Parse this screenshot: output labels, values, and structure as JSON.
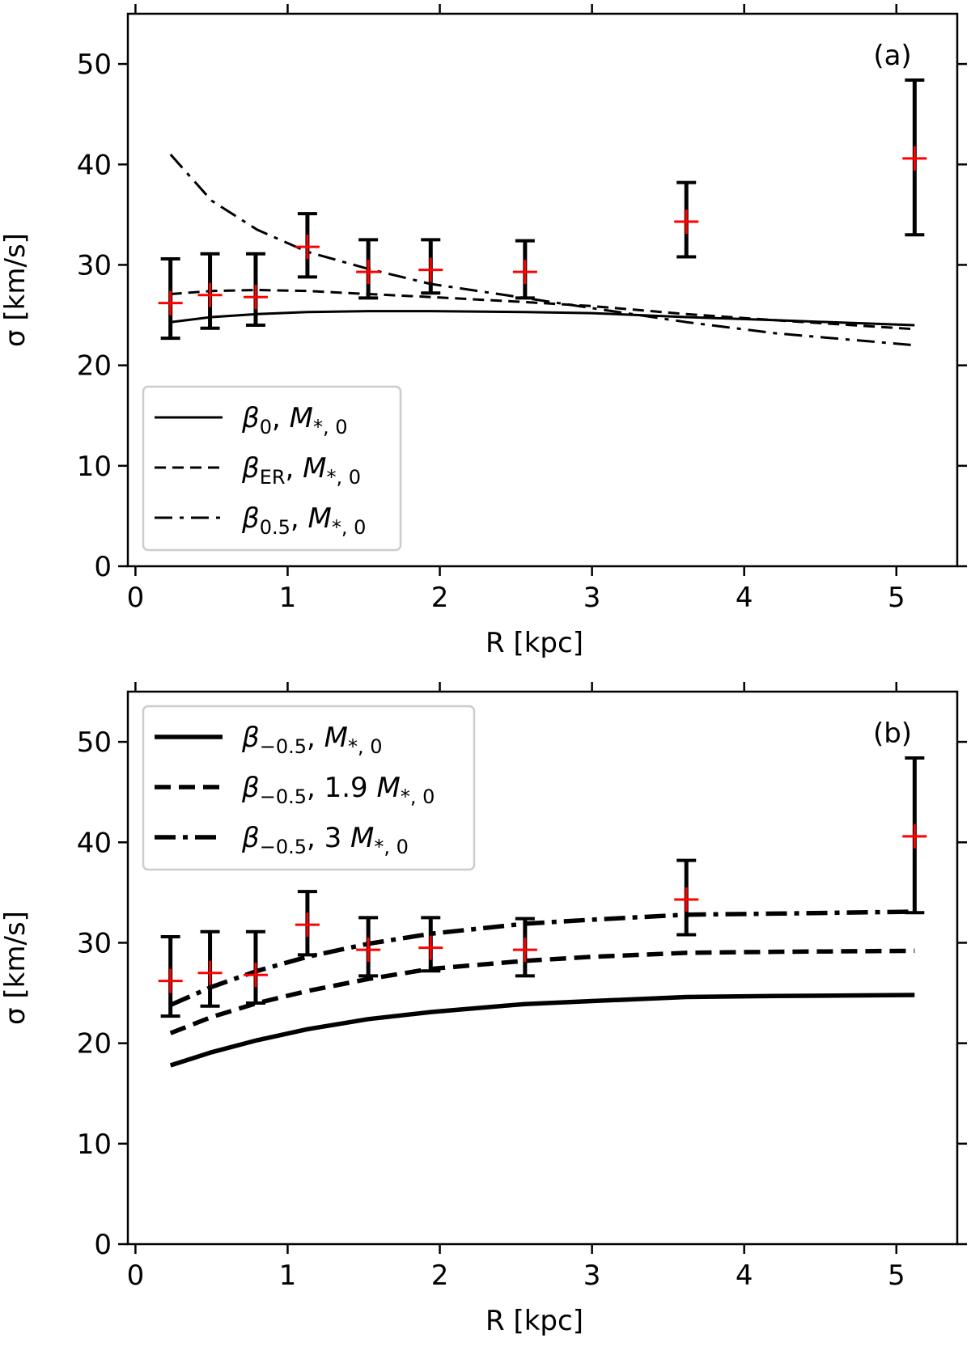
{
  "chart_data": [
    {
      "type": "line",
      "panel_label": "(a)",
      "xlabel": "R [kpc]",
      "ylabel": "σ [km/s]",
      "xlim": [
        -0.05,
        5.4
      ],
      "ylim": [
        0,
        55
      ],
      "xticks": [
        0,
        1,
        2,
        3,
        4,
        5
      ],
      "yticks": [
        0,
        10,
        20,
        30,
        40,
        50
      ],
      "legend_position": "lower-left",
      "observations": {
        "marker": "red-plus",
        "errorbar_color": "#000000",
        "x": [
          0.23,
          0.49,
          0.79,
          1.13,
          1.53,
          1.94,
          2.56,
          3.62,
          5.12
        ],
        "y": [
          26.2,
          27.0,
          26.8,
          31.8,
          29.3,
          29.5,
          29.3,
          34.3,
          40.6
        ],
        "y_err_low": [
          3.5,
          3.3,
          2.8,
          3.0,
          2.6,
          2.3,
          2.6,
          3.5,
          7.6
        ],
        "y_err_high": [
          4.4,
          4.1,
          4.3,
          3.3,
          3.2,
          3.0,
          3.1,
          3.9,
          7.8
        ]
      },
      "series": [
        {
          "name": "β0, M*,0",
          "legend_sym": "β",
          "legend_sub": "0",
          "legend_rest": ", M",
          "legend_sub2": "*, 0",
          "style": "solid",
          "width": "thin",
          "x": [
            0.23,
            0.5,
            0.8,
            1.13,
            1.53,
            1.94,
            2.56,
            3.0,
            3.62,
            4.2,
            5.12
          ],
          "y": [
            24.3,
            24.8,
            25.1,
            25.3,
            25.4,
            25.4,
            25.3,
            25.2,
            24.8,
            24.5,
            24.0
          ]
        },
        {
          "name": "βER, M*,0",
          "legend_sym": "β",
          "legend_sub": "ER",
          "legend_rest": ", M",
          "legend_sub2": "*, 0",
          "style": "dashed",
          "width": "thin",
          "x": [
            0.23,
            0.5,
            0.8,
            1.13,
            1.53,
            1.94,
            2.56,
            3.0,
            3.62,
            4.2,
            5.12
          ],
          "y": [
            27.1,
            27.4,
            27.5,
            27.4,
            27.1,
            26.8,
            26.3,
            25.9,
            25.1,
            24.5,
            23.6
          ]
        },
        {
          "name": "β0.5, M*,0",
          "legend_sym": "β",
          "legend_sub": "0.5",
          "legend_rest": ", M",
          "legend_sub2": "*, 0",
          "style": "dashdot",
          "width": "thin",
          "x": [
            0.23,
            0.5,
            0.8,
            1.13,
            1.53,
            1.94,
            2.56,
            3.0,
            3.62,
            4.2,
            5.12
          ],
          "y": [
            41.0,
            36.4,
            33.5,
            31.3,
            29.6,
            28.1,
            26.7,
            25.7,
            24.3,
            23.2,
            22.0
          ]
        }
      ]
    },
    {
      "type": "line",
      "panel_label": "(b)",
      "xlabel": "R [kpc]",
      "ylabel": "σ [km/s]",
      "xlim": [
        -0.05,
        5.4
      ],
      "ylim": [
        0,
        55
      ],
      "xticks": [
        0,
        1,
        2,
        3,
        4,
        5
      ],
      "yticks": [
        0,
        10,
        20,
        30,
        40,
        50
      ],
      "legend_position": "upper-left",
      "observations": {
        "marker": "red-plus",
        "errorbar_color": "#000000",
        "x": [
          0.23,
          0.49,
          0.79,
          1.13,
          1.53,
          1.94,
          2.56,
          3.62,
          5.12
        ],
        "y": [
          26.2,
          27.0,
          26.8,
          31.8,
          29.3,
          29.5,
          29.3,
          34.3,
          40.6
        ],
        "y_err_low": [
          3.5,
          3.3,
          2.8,
          3.0,
          2.6,
          2.3,
          2.6,
          3.5,
          7.6
        ],
        "y_err_high": [
          4.4,
          4.1,
          4.3,
          3.3,
          3.2,
          3.0,
          3.1,
          3.9,
          7.8
        ]
      },
      "series": [
        {
          "name": "β−0.5, M*,0",
          "legend_sym": "β",
          "legend_sub": "−0.5",
          "legend_rest": ", M",
          "legend_sub2": "*, 0",
          "style": "solid",
          "width": "thick",
          "x": [
            0.23,
            0.5,
            0.8,
            1.13,
            1.53,
            1.94,
            2.56,
            3.0,
            3.62,
            4.2,
            5.12
          ],
          "y": [
            17.8,
            19.1,
            20.3,
            21.4,
            22.4,
            23.1,
            23.9,
            24.2,
            24.6,
            24.7,
            24.8
          ]
        },
        {
          "name": "β−0.5, 1.9 M*,0",
          "legend_sym": "β",
          "legend_sub": "−0.5",
          "legend_rest": ", 1.9 M",
          "legend_sub2": "*, 0",
          "style": "dashed",
          "width": "thick",
          "x": [
            0.23,
            0.5,
            0.8,
            1.13,
            1.53,
            1.94,
            2.56,
            3.0,
            3.62,
            4.2,
            5.12
          ],
          "y": [
            21.0,
            22.6,
            24.0,
            25.2,
            26.4,
            27.4,
            28.2,
            28.6,
            29.0,
            29.1,
            29.2
          ]
        },
        {
          "name": "β−0.5, 3 M*,0",
          "legend_sym": "β",
          "legend_sub": "−0.5",
          "legend_rest": ", 3 M",
          "legend_sub2": "*, 0",
          "style": "dashdot",
          "width": "thick",
          "x": [
            0.23,
            0.5,
            0.8,
            1.13,
            1.53,
            1.94,
            2.56,
            3.0,
            3.62,
            4.2,
            5.12
          ],
          "y": [
            23.8,
            25.6,
            27.2,
            28.6,
            29.9,
            30.9,
            31.9,
            32.3,
            32.8,
            32.9,
            33.1
          ]
        }
      ]
    }
  ]
}
